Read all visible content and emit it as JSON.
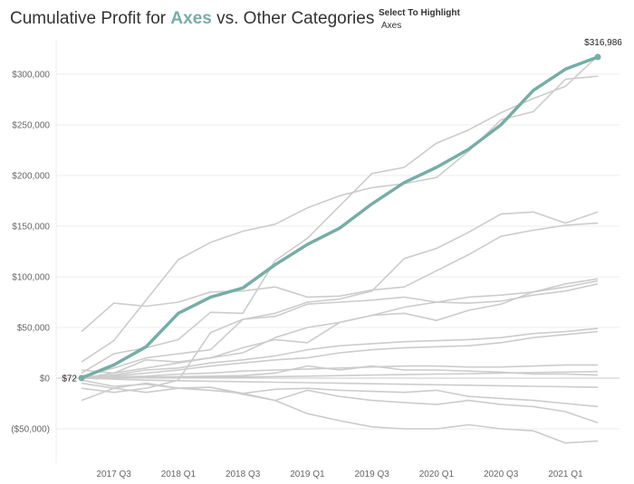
{
  "title": {
    "prefix": "Cumulative Profit for ",
    "highlight": "Axes",
    "suffix": " vs. Other Categories"
  },
  "filter": {
    "label": "Select To Highlight",
    "value": "Axes"
  },
  "colors": {
    "highlight": "#76ada7",
    "other": "#cccccc",
    "grid": "#ececec",
    "zero_line": "#c8c8c8",
    "axis_text": "#666666",
    "title_text": "#333333"
  },
  "chart_data": {
    "type": "line",
    "title": "Cumulative Profit for Axes vs. Other Categories",
    "xlabel": "",
    "ylabel": "",
    "x": [
      "2017 Q2",
      "2017 Q3",
      "2017 Q4",
      "2018 Q1",
      "2018 Q2",
      "2018 Q3",
      "2018 Q4",
      "2019 Q1",
      "2019 Q2",
      "2019 Q3",
      "2019 Q4",
      "2020 Q1",
      "2020 Q2",
      "2020 Q3",
      "2020 Q4",
      "2021 Q1",
      "2021 Q2"
    ],
    "x_tick_labels": [
      {
        "x": "2017 Q3",
        "label": "2017 Q3"
      },
      {
        "x": "2018 Q1",
        "label": "2018 Q1"
      },
      {
        "x": "2018 Q3",
        "label": "2018 Q3"
      },
      {
        "x": "2019 Q1",
        "label": "2019 Q1"
      },
      {
        "x": "2019 Q3",
        "label": "2019 Q3"
      },
      {
        "x": "2020 Q1",
        "label": "2020 Q1"
      },
      {
        "x": "2020 Q3",
        "label": "2020 Q3"
      },
      {
        "x": "2021 Q1",
        "label": "2021 Q1"
      }
    ],
    "y_ticks": [
      {
        "value": 300000,
        "label": "$300,000"
      },
      {
        "value": 250000,
        "label": "$250,000"
      },
      {
        "value": 200000,
        "label": "$200,000"
      },
      {
        "value": 150000,
        "label": "$150,000"
      },
      {
        "value": 100000,
        "label": "$100,000"
      },
      {
        "value": 50000,
        "label": "$50,000"
      },
      {
        "value": 0,
        "label": "$0"
      },
      {
        "value": -50000,
        "label": "($50,000)"
      }
    ],
    "ylim": [
      -75000,
      330000
    ],
    "grid": true,
    "legend": "none",
    "highlighted": {
      "name": "Axes",
      "values": [
        72,
        13000,
        31000,
        64000,
        80000,
        89000,
        112000,
        132000,
        148000,
        172000,
        193000,
        208000,
        226000,
        250000,
        284000,
        305000,
        316986
      ],
      "start_label": "$72",
      "end_label": "$316,986"
    },
    "series": [
      {
        "values": [
          16000,
          37000,
          77000,
          117000,
          134000,
          145000,
          152000,
          168000,
          180000,
          188000,
          192000,
          198000,
          224000,
          255000,
          263000,
          295000,
          298000
        ]
      },
      {
        "values": [
          5000,
          24000,
          30000,
          38000,
          65000,
          64000,
          116000,
          138000,
          170000,
          202000,
          208000,
          232000,
          245000,
          262000,
          276000,
          288000,
          318000
        ]
      },
      {
        "values": [
          2000,
          10000,
          20000,
          24000,
          28000,
          58000,
          64000,
          75000,
          78000,
          86000,
          118000,
          128000,
          144000,
          162000,
          164000,
          153000,
          164000
        ]
      },
      {
        "values": [
          46000,
          74000,
          71000,
          75000,
          85000,
          86000,
          90000,
          80000,
          81000,
          87000,
          90000,
          106000,
          122000,
          140000,
          146000,
          151000,
          153000
        ]
      },
      {
        "values": [
          8000,
          5000,
          18000,
          16000,
          20000,
          25000,
          40000,
          50000,
          55000,
          62000,
          70000,
          75000,
          80000,
          82000,
          85000,
          93000,
          98000
        ]
      },
      {
        "values": [
          -10000,
          -14000,
          -10000,
          -2000,
          45000,
          58000,
          61000,
          73000,
          75000,
          77000,
          80000,
          75000,
          74000,
          76000,
          82000,
          86000,
          93000
        ]
      },
      {
        "values": [
          0,
          5000,
          10000,
          15000,
          20000,
          30000,
          38000,
          35000,
          55000,
          62000,
          64000,
          57000,
          67000,
          73000,
          85000,
          90000,
          96000
        ]
      },
      {
        "values": [
          0,
          3000,
          8000,
          10000,
          15000,
          18000,
          22000,
          28000,
          32000,
          34000,
          36000,
          37000,
          38000,
          40000,
          44000,
          46000,
          49000
        ]
      },
      {
        "values": [
          0,
          2000,
          5000,
          8000,
          12000,
          15000,
          18000,
          20000,
          25000,
          28000,
          30000,
          31000,
          32000,
          35000,
          40000,
          43000,
          46000
        ]
      },
      {
        "values": [
          0,
          1000,
          2000,
          4000,
          5000,
          7000,
          8000,
          9000,
          10000,
          11000,
          12000,
          12000,
          11000,
          11000,
          12000,
          13000,
          13000
        ]
      },
      {
        "values": [
          0,
          500,
          1000,
          1500,
          2000,
          2500,
          5000,
          12000,
          8000,
          12000,
          8000,
          8000,
          7000,
          6000,
          4000,
          4000,
          3000
        ]
      },
      {
        "values": [
          0,
          200,
          500,
          700,
          1000,
          1200,
          1500,
          2000,
          2500,
          3000,
          3500,
          4000,
          4500,
          5000,
          5500,
          6000,
          6500
        ]
      },
      {
        "values": [
          0,
          -1000,
          -2000,
          -2500,
          -3000,
          -3500,
          -4000,
          -4500,
          -5000,
          -5500,
          -6000,
          -6500,
          -7000,
          -7500,
          -8000,
          -8500,
          -9000
        ]
      },
      {
        "values": [
          -2000,
          -8000,
          -6000,
          -10000,
          -12000,
          -15000,
          -11000,
          -10000,
          -12000,
          -13000,
          -14000,
          -12000,
          -18000,
          -20000,
          -22000,
          -25000,
          -28000
        ]
      },
      {
        "values": [
          -22000,
          -10000,
          -14000,
          -10000,
          -9000,
          -16000,
          -22000,
          -12000,
          -18000,
          -22000,
          -24000,
          -26000,
          -22000,
          -26000,
          -28000,
          -33000,
          -44000
        ]
      },
      {
        "values": [
          -5000,
          -10000,
          -5000,
          -10000,
          -9000,
          -15000,
          -22000,
          -35000,
          -42000,
          -48000,
          -50000,
          -50000,
          -46000,
          -50000,
          -52000,
          -64000,
          -62000
        ]
      }
    ]
  }
}
